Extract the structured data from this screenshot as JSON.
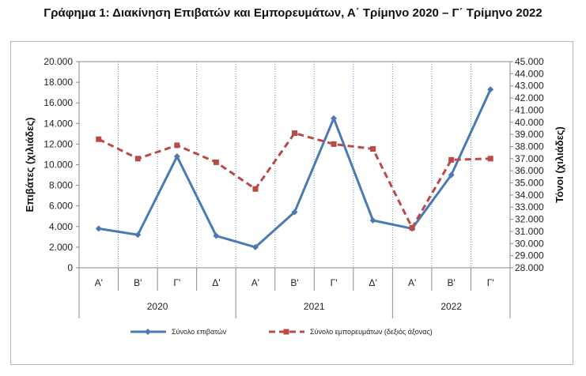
{
  "chart_data": {
    "type": "line",
    "title": "Γράφημα 1: Διακίνηση Επιβατών και Εμπορευμάτων, Α΄ Τρίμηνο 2020 – Γ΄ Τρίμηνο 2022",
    "categories": [
      "Α'",
      "Β'",
      "Γ'",
      "Δ'",
      "Α'",
      "Β'",
      "Γ'",
      "Δ'",
      "Α'",
      "Β'",
      "Γ'"
    ],
    "groups": [
      {
        "label": "2020",
        "span": 4
      },
      {
        "label": "2021",
        "span": 4
      },
      {
        "label": "2022",
        "span": 3
      }
    ],
    "ylabel": "Επιβάτες (χιλιάδες)",
    "y2label": "Τόνοι (χιλιάδες)",
    "ylim": [
      0,
      20000
    ],
    "y2lim": [
      28000,
      45000
    ],
    "yticks": [
      "0",
      "2.000",
      "4.000",
      "6.000",
      "8.000",
      "10.000",
      "12.000",
      "14.000",
      "16.000",
      "18.000",
      "20.000"
    ],
    "y2ticks": [
      "28.000",
      "29.000",
      "30.000",
      "31.000",
      "32.000",
      "33.000",
      "34.000",
      "35.000",
      "36.000",
      "37.000",
      "38.000",
      "39.000",
      "40.000",
      "41.000",
      "42.000",
      "43.000",
      "44.000",
      "45.000"
    ],
    "grid": "vertical dotted",
    "legend": "bottom",
    "series": [
      {
        "name": "Σύνολο επιβατών",
        "axis": "left",
        "color": "#4a7ab5",
        "style": "solid",
        "marker": "diamond",
        "values": [
          3800,
          3200,
          10800,
          3100,
          2000,
          5400,
          14500,
          4600,
          3800,
          9000,
          17300
        ]
      },
      {
        "name": "Σύνολο εμπορευμάτων (δεξιός άξονας)",
        "axis": "right",
        "color": "#b94a48",
        "style": "dashed",
        "marker": "square",
        "values": [
          38600,
          37000,
          38100,
          36700,
          34500,
          39100,
          38200,
          37800,
          31300,
          36900,
          37000
        ]
      }
    ]
  }
}
